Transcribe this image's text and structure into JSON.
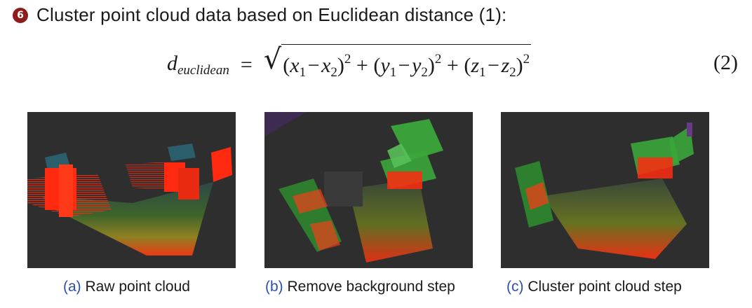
{
  "step": {
    "badge": "6",
    "text": "Cluster point cloud data based on Euclidean distance (1):"
  },
  "equation": {
    "lhs_symbol": "d",
    "lhs_subscript": "euclidean",
    "equals": "=",
    "terms": [
      {
        "a": "x",
        "b": "x"
      },
      {
        "a": "y",
        "b": "y"
      },
      {
        "a": "z",
        "b": "z"
      }
    ],
    "index1": "1",
    "index2": "2",
    "power": "2",
    "minus": "−",
    "plus": "+",
    "number": "(2)"
  },
  "figures": [
    {
      "label": "(a)",
      "caption": "Raw point cloud"
    },
    {
      "label": "(b)",
      "caption": "Remove background step"
    },
    {
      "label": "(c)",
      "caption": "Cluster point cloud step"
    }
  ],
  "colors": {
    "badge": "#8e1c1c",
    "caption_label": "#2e4fa8",
    "panel_background": "#2e2e2e",
    "points_red": "#ff2a10",
    "box_green": "#3aa63a"
  }
}
